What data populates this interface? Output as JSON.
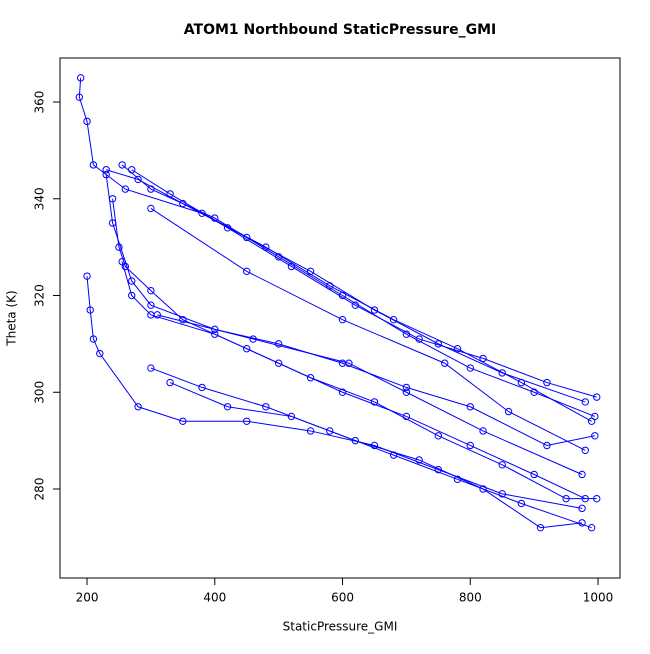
{
  "chart_data": {
    "type": "line",
    "title": "ATOM1 Northbound StaticPressure_GMI",
    "xlabel": "StaticPressure_GMI",
    "ylabel": "Theta (K)",
    "xlim": [
      157.7,
      1034.4
    ],
    "ylim": [
      261.6,
      369.1
    ],
    "xticks": [
      200,
      400,
      600,
      800,
      1000
    ],
    "yticks": [
      280,
      300,
      320,
      340,
      360
    ],
    "grid": false,
    "series": [
      {
        "color": "#0000ff",
        "x": [
          255,
          300,
          400,
          500,
          600,
          700,
          800,
          900,
          995,
          null,
          230,
          280,
          350,
          450,
          550,
          650,
          750,
          850,
          980,
          null,
          270,
          330,
          420,
          520,
          620,
          720,
          820,
          920,
          998,
          null,
          190,
          188,
          200,
          210,
          260,
          380,
          480,
          580,
          680,
          780,
          880,
          990,
          null,
          255,
          270,
          300,
          400,
          500,
          600,
          700,
          800,
          900,
          980,
          null,
          200,
          205,
          210,
          220,
          280,
          350,
          450,
          550,
          650,
          750,
          850,
          975,
          null,
          240,
          250,
          260,
          300,
          350,
          450,
          550,
          650,
          750,
          850,
          950,
          998,
          null,
          330,
          420,
          520,
          620,
          720,
          820,
          910,
          975,
          null,
          300,
          380,
          480,
          580,
          680,
          780,
          880,
          990,
          null,
          230,
          240,
          270,
          300,
          400,
          500,
          600,
          700,
          800,
          920,
          995,
          null,
          300,
          450,
          600,
          760,
          860,
          980,
          null,
          310,
          460,
          610,
          700,
          820,
          975
        ],
        "values": [
          347,
          342,
          336,
          328,
          320,
          312,
          305,
          300,
          295,
          null,
          346,
          344,
          339,
          332,
          325,
          317,
          310,
          304,
          298,
          null,
          346,
          341,
          334,
          326,
          318,
          311,
          307,
          302,
          299,
          null,
          365,
          361,
          356,
          347,
          342,
          337,
          330,
          322,
          315,
          309,
          302,
          294,
          null,
          327,
          320,
          316,
          312,
          306,
          300,
          295,
          289,
          283,
          278,
          null,
          324,
          317,
          311,
          308,
          297,
          294,
          294,
          292,
          289,
          284,
          279,
          276,
          null,
          340,
          330,
          326,
          321,
          315,
          309,
          303,
          298,
          291,
          285,
          278,
          278,
          null,
          302,
          297,
          295,
          290,
          286,
          280,
          272,
          273,
          null,
          305,
          301,
          297,
          292,
          287,
          282,
          277,
          272,
          null,
          345,
          335,
          323,
          318,
          313,
          310,
          306,
          301,
          297,
          289,
          291,
          null,
          338,
          325,
          315,
          306,
          296,
          288,
          null,
          316,
          311,
          306,
          300,
          292,
          283
        ]
      }
    ]
  }
}
